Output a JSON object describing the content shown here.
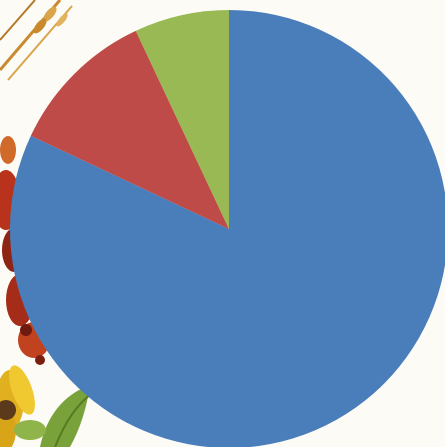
{
  "chart_data": {
    "type": "pie",
    "title": "",
    "legend": "none",
    "start_angle_deg": 0,
    "direction": "clockwise",
    "slices": [
      {
        "value": 82.0,
        "color": "#4a7ebb"
      },
      {
        "value": 11.0,
        "color": "#be4b48"
      },
      {
        "value": 7.0,
        "color": "#98b954"
      }
    ]
  },
  "background": {
    "decoration": "autumn-leaves-and-sunflower",
    "colors": [
      "#c98a2e",
      "#b8321c",
      "#e0b020",
      "#7aa23a",
      "#5a3a1a"
    ]
  }
}
